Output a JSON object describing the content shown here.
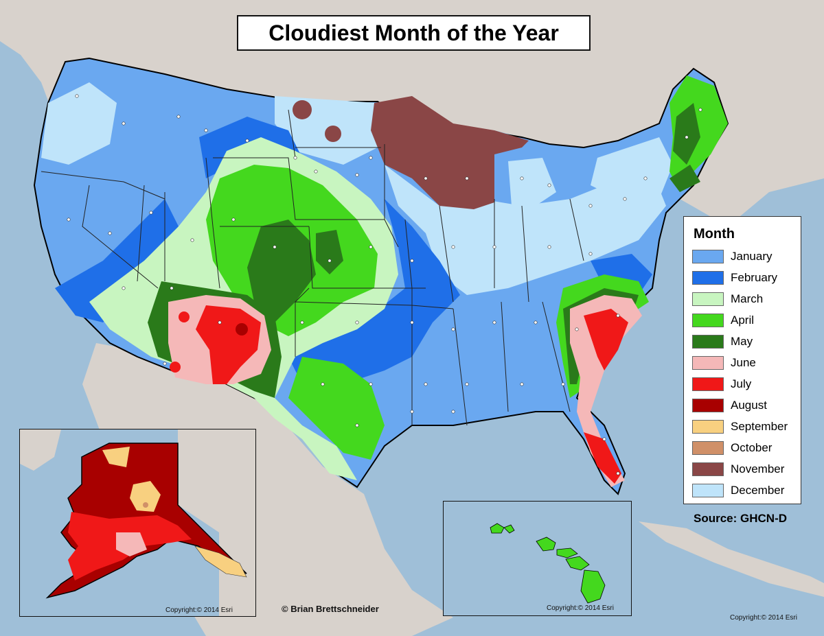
{
  "title": "Cloudiest Month of the Year",
  "legend": {
    "title": "Month",
    "items": [
      {
        "label": "January",
        "color": "#6aa8f0"
      },
      {
        "label": "February",
        "color": "#1f6fe8"
      },
      {
        "label": "March",
        "color": "#c8f5c0"
      },
      {
        "label": "April",
        "color": "#44d81e"
      },
      {
        "label": "May",
        "color": "#2a7a1a"
      },
      {
        "label": "June",
        "color": "#f5b8b8"
      },
      {
        "label": "July",
        "color": "#f01818"
      },
      {
        "label": "August",
        "color": "#a80000"
      },
      {
        "label": "September",
        "color": "#f8d080"
      },
      {
        "label": "October",
        "color": "#d09068"
      },
      {
        "label": "November",
        "color": "#8a4646"
      },
      {
        "label": "December",
        "color": "#bfe4fa"
      }
    ]
  },
  "source": "Source: GHCN-D",
  "credit": "© Brian Brettschneider",
  "copyrights": {
    "alaska": "Copyright:© 2014 Esri",
    "hawaii": "Copyright:© 2014 Esri",
    "main": "Copyright:© 2014 Esri"
  },
  "colors": {
    "ocean": "#9fbfd8",
    "land_other": "#d8d2cc",
    "state_border": "#222222"
  }
}
